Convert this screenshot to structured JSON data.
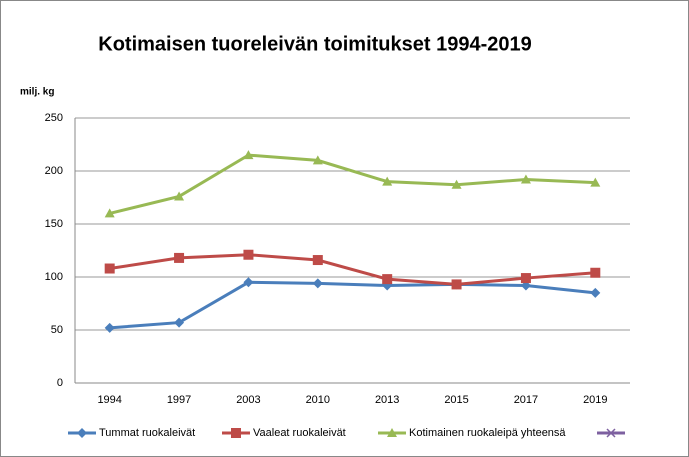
{
  "chart_data": {
    "type": "line",
    "title": "Kotimaisen tuoreleivän toimitukset 1994-2019",
    "y_label": "milj. kg",
    "categories": [
      "1994",
      "1997",
      "2003",
      "2010",
      "2013",
      "2015",
      "2017",
      "2019"
    ],
    "series": [
      {
        "name": "Tummat ruokaleivät",
        "color": "#4a7ebb",
        "marker": "diamond",
        "values": [
          52,
          57,
          95,
          94,
          92,
          93,
          92,
          85
        ]
      },
      {
        "name": "Vaaleat ruokaleivät",
        "color": "#be4b48",
        "marker": "square",
        "values": [
          108,
          118,
          121,
          116,
          98,
          93,
          99,
          104
        ]
      },
      {
        "name": "Kotimainen ruokaleipä yhteensä",
        "color": "#98b954",
        "marker": "triangle",
        "values": [
          160,
          176,
          215,
          210,
          190,
          187,
          192,
          189
        ]
      }
    ],
    "ylim": [
      0,
      250
    ],
    "yticks": [
      0,
      50,
      100,
      150,
      200,
      250
    ],
    "grid": true,
    "legend": "bottom"
  }
}
